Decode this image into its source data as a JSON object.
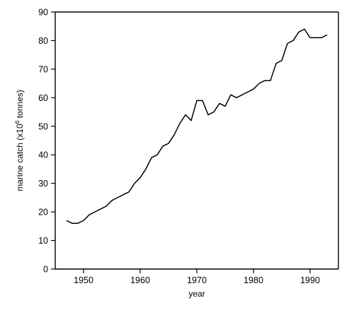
{
  "chart_data": {
    "type": "line",
    "title": "",
    "xlabel": "year",
    "ylabel_prefix": "marine catch (x10",
    "ylabel_exp": "6",
    "ylabel_suffix": " tonnes)",
    "xlim": [
      1945,
      1995
    ],
    "ylim": [
      0,
      90
    ],
    "xticks": [
      1950,
      1960,
      1970,
      1980,
      1990
    ],
    "yticks": [
      0,
      10,
      20,
      30,
      40,
      50,
      60,
      70,
      80,
      90
    ],
    "grid": false,
    "legend": "none",
    "series": [
      {
        "x": [
          1947,
          1948,
          1949,
          1950,
          1951,
          1952,
          1953,
          1954,
          1955,
          1956,
          1957,
          1958,
          1959,
          1960,
          1961,
          1962,
          1963,
          1964,
          1965,
          1966,
          1967,
          1968,
          1969,
          1970,
          1971,
          1972,
          1973,
          1974,
          1975,
          1976,
          1977,
          1978,
          1979,
          1980,
          1981,
          1982,
          1983,
          1984,
          1985,
          1986,
          1987,
          1988,
          1989,
          1990,
          1991,
          1992,
          1993
        ],
        "y": [
          17,
          16,
          16,
          17,
          19,
          20,
          21,
          22,
          24,
          25,
          26,
          27,
          30,
          32,
          35,
          39,
          40,
          43,
          44,
          47,
          51,
          54,
          52,
          59,
          59,
          54,
          55,
          58,
          57,
          61,
          60,
          61,
          62,
          63,
          65,
          66,
          66,
          72,
          73,
          79,
          80,
          83,
          84,
          81,
          81,
          81,
          82
        ]
      }
    ]
  }
}
